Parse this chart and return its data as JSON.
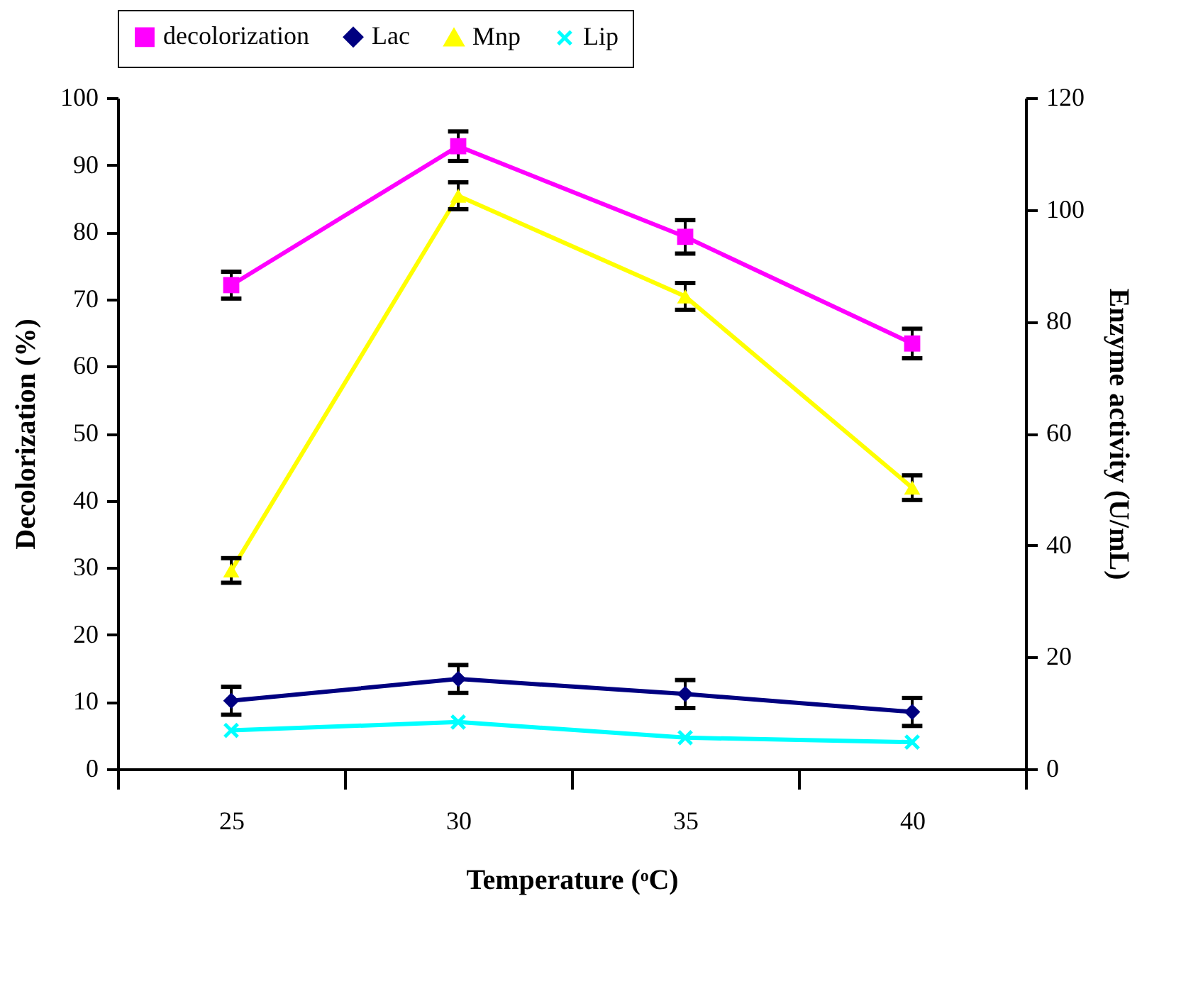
{
  "chart_data": {
    "type": "line",
    "xlabel": "Temperature (ᵒC)",
    "ylabel": "Decolorization (%)",
    "y2label": "Enzyme activity (U/mL)",
    "categories": [
      "25",
      "30",
      "35",
      "40"
    ],
    "series": [
      {
        "name": "decolorization",
        "color": "#ff00ff",
        "marker": "square",
        "values": [
          72.1,
          92.8,
          79.3,
          63.4
        ],
        "errors": [
          2,
          2.2,
          2.5,
          2.2
        ]
      },
      {
        "name": "Lac",
        "color": "#000080",
        "marker": "diamond",
        "axis": "y2",
        "values": [
          12.2,
          16.1,
          13.4,
          10.2
        ],
        "errors": [
          2.5,
          2.5,
          2.5,
          2.5
        ]
      },
      {
        "name": "Mnp",
        "color": "#ffff00",
        "marker": "triangle",
        "axis": "y2",
        "values": [
          35.5,
          102.5,
          84.5,
          50.3
        ],
        "errors": [
          2.2,
          2.4,
          2.4,
          2.2
        ]
      },
      {
        "name": "Lip",
        "color": "#00ffff",
        "marker": "cross",
        "axis": "y2",
        "values": [
          6.9,
          8.4,
          5.6,
          4.8
        ]
      }
    ],
    "ylim": [
      0,
      100
    ],
    "yticks": [
      0,
      10,
      20,
      30,
      40,
      50,
      60,
      70,
      80,
      90,
      100
    ],
    "y2lim": [
      0,
      120
    ],
    "y2ticks": [
      0,
      20,
      40,
      60,
      80,
      100,
      120
    ],
    "legend": "top"
  }
}
